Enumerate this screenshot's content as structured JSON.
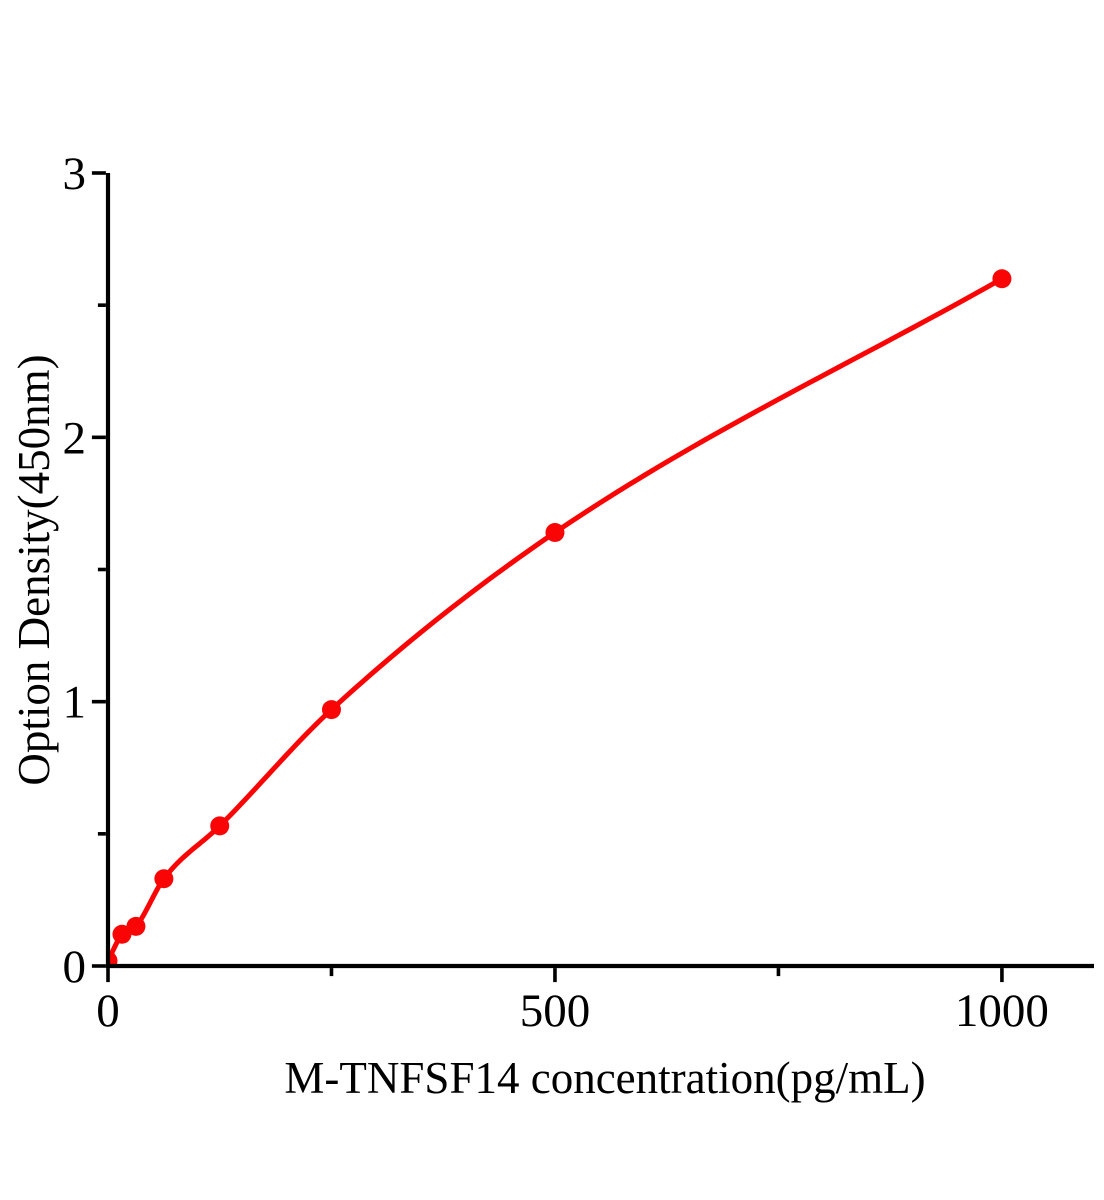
{
  "chart_data": {
    "type": "line",
    "title": "",
    "xlabel": "M-TNFSF14 concentration(pg/mL)",
    "ylabel": "Option Density(450nm)",
    "points": [
      {
        "x": 0,
        "y": 0.02
      },
      {
        "x": 15.6,
        "y": 0.12
      },
      {
        "x": 31.25,
        "y": 0.15
      },
      {
        "x": 62.5,
        "y": 0.33
      },
      {
        "x": 125,
        "y": 0.53
      },
      {
        "x": 250,
        "y": 0.97
      },
      {
        "x": 500,
        "y": 1.64
      },
      {
        "x": 1000,
        "y": 2.6
      }
    ],
    "xlim": [
      0,
      1103
    ],
    "ylim": [
      0,
      3
    ],
    "x_major_ticks": [
      {
        "value": 0,
        "label": "0"
      },
      {
        "value": 500,
        "label": "500"
      },
      {
        "value": 1000,
        "label": "1000"
      }
    ],
    "x_minor_ticks": [
      250,
      750
    ],
    "y_major_ticks": [
      {
        "value": 0,
        "label": "0"
      },
      {
        "value": 1,
        "label": "1"
      },
      {
        "value": 2,
        "label": "2"
      },
      {
        "value": 3,
        "label": "3"
      }
    ],
    "y_minor_ticks": [
      0.5,
      1.5,
      2.5
    ],
    "line_color": "#fa0505",
    "marker_color": "#fa0505",
    "marker": "circle",
    "axis_color": "#000000",
    "background": "#ffffff",
    "grid": false,
    "legend_position": "none"
  }
}
